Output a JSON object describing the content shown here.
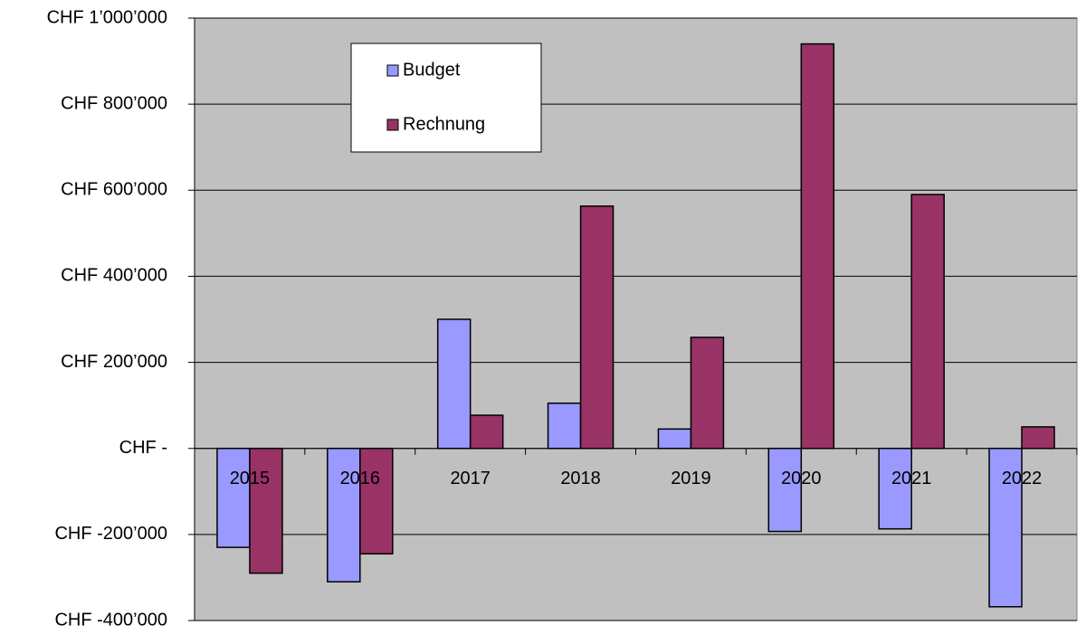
{
  "chart_data": {
    "type": "bar",
    "categories": [
      "2015",
      "2016",
      "2017",
      "2018",
      "2019",
      "2020",
      "2021",
      "2022"
    ],
    "series": [
      {
        "name": "Budget",
        "color": "#9999ff",
        "values": [
          -230000,
          -310000,
          300000,
          105000,
          45000,
          -193000,
          -187000,
          -368000
        ]
      },
      {
        "name": "Rechnung",
        "color": "#993366",
        "values": [
          -290000,
          -245000,
          77000,
          563000,
          258000,
          940000,
          590000,
          50000
        ]
      }
    ],
    "ylim": [
      -400000,
      1000000
    ],
    "yticks": [
      {
        "value": -400000,
        "label": "CHF -400’000"
      },
      {
        "value": -200000,
        "label": "CHF -200’000"
      },
      {
        "value": 0,
        "label": "CHF -"
      },
      {
        "value": 200000,
        "label": "CHF 200’000"
      },
      {
        "value": 400000,
        "label": "CHF 400’000"
      },
      {
        "value": 600000,
        "label": "CHF 600’000"
      },
      {
        "value": 800000,
        "label": "CHF 800’000"
      },
      {
        "value": 1000000,
        "label": "CHF 1’000’000"
      }
    ],
    "grid": true,
    "legend": "upper left"
  }
}
